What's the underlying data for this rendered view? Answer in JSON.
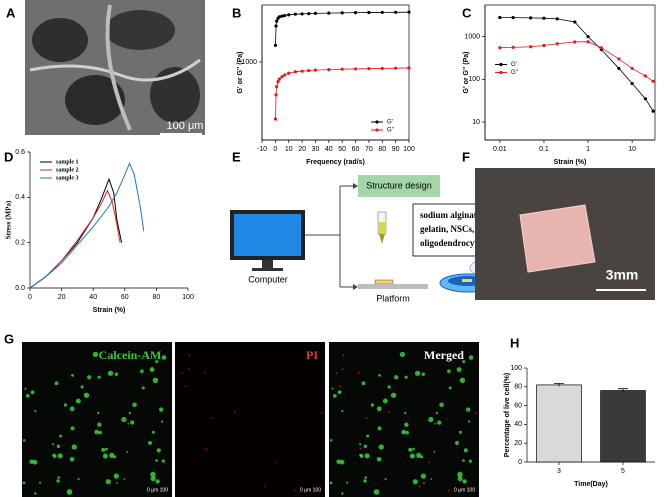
{
  "panels": [
    "A",
    "B",
    "C",
    "D",
    "E",
    "F",
    "G",
    "H"
  ],
  "images": {
    "sem_scale": "100 μm",
    "photo_scale": "3mm",
    "fluorescence": [
      {
        "label": "Calcein-AM",
        "scale": "0 μm 100"
      },
      {
        "label": "PI",
        "scale": "0 μm 100"
      },
      {
        "label": "Merged",
        "scale": "0 μm 100"
      }
    ]
  },
  "diagram": {
    "structure": "Structure design",
    "materials": [
      "sodium alginate，",
      "gelatin, NSCs,",
      "oligodendrocytes"
    ],
    "computer": "Computer",
    "platform": "Platform"
  },
  "chart_data": [
    {
      "type": "line",
      "xlabel": "Frequency (rad/s)",
      "ylabel": "G' or G'' (Pa)",
      "xlim": [
        -10,
        100
      ],
      "xticks": [
        -10,
        0,
        10,
        20,
        30,
        40,
        50,
        60,
        70,
        80,
        90,
        100
      ],
      "ylim": [
        150,
        4000
      ],
      "ylog": true,
      "yticks": [
        1000
      ],
      "markers": true,
      "legend": "lower right",
      "x": [
        0.1,
        0.5,
        1,
        2,
        3,
        5,
        7,
        10,
        15,
        20,
        25,
        30,
        40,
        50,
        60,
        70,
        80,
        90,
        100
      ],
      "series": [
        {
          "name": "G'",
          "color": "#000000",
          "values": [
            1500,
            2400,
            2700,
            2900,
            3000,
            3050,
            3100,
            3150,
            3200,
            3220,
            3240,
            3260,
            3280,
            3300,
            3320,
            3330,
            3340,
            3350,
            3360
          ]
        },
        {
          "name": "G''",
          "color": "#e31a1c",
          "values": [
            250,
            450,
            550,
            620,
            660,
            700,
            730,
            760,
            790,
            800,
            810,
            820,
            830,
            840,
            845,
            850,
            855,
            860,
            865
          ]
        }
      ]
    },
    {
      "type": "line",
      "xlabel": "Strain (%)",
      "ylabel": "G' or G'' (Pa)",
      "xlim": [
        0.0046,
        33
      ],
      "xlog": true,
      "xticks": [
        0.01,
        0.1,
        1,
        10
      ],
      "ylim": [
        3.8,
        5500
      ],
      "ylog": true,
      "yticks": [
        10,
        100,
        1000
      ],
      "markers": true,
      "legend": "middle left",
      "x": [
        0.01,
        0.02,
        0.05,
        0.1,
        0.2,
        0.5,
        1,
        2,
        5,
        10,
        20,
        30
      ],
      "series": [
        {
          "name": "G'",
          "color": "#000000",
          "values": [
            2800,
            2780,
            2750,
            2700,
            2600,
            2200,
            1000,
            500,
            180,
            80,
            35,
            18
          ]
        },
        {
          "name": "G''",
          "color": "#e31a1c",
          "values": [
            550,
            560,
            580,
            620,
            680,
            750,
            760,
            550,
            300,
            180,
            120,
            90
          ]
        }
      ]
    },
    {
      "type": "line",
      "xlabel": "Strain (%)",
      "ylabel": "Stress (MPa)",
      "xlim": [
        0,
        100
      ],
      "xticks": [
        0,
        20,
        40,
        60,
        80,
        100
      ],
      "ylim": [
        0,
        0.6
      ],
      "yticks": [
        {
          "value": 0,
          "label": "0.0"
        },
        {
          "value": 0.2,
          "label": "0.2"
        },
        {
          "value": 0.4,
          "label": "0.4"
        },
        {
          "value": 0.6,
          "label": "0.6"
        }
      ],
      "markers": false,
      "legend": "upper left",
      "series": [
        {
          "name": "sample 1",
          "color": "#000000",
          "x": [
            0,
            10,
            20,
            30,
            40,
            45,
            50,
            53,
            55,
            58
          ],
          "values": [
            0,
            0.05,
            0.12,
            0.2,
            0.31,
            0.39,
            0.48,
            0.42,
            0.3,
            0.2
          ]
        },
        {
          "name": "sample 2",
          "color": "#d62728",
          "x": [
            0,
            10,
            20,
            30,
            40,
            45,
            49,
            52,
            55,
            57
          ],
          "values": [
            0,
            0.05,
            0.12,
            0.21,
            0.31,
            0.37,
            0.43,
            0.38,
            0.28,
            0.2
          ]
        },
        {
          "name": "sample 3",
          "color": "#1f77b4",
          "x": [
            0,
            10,
            20,
            30,
            40,
            50,
            55,
            60,
            63,
            66,
            70,
            72
          ],
          "values": [
            0,
            0.05,
            0.11,
            0.19,
            0.27,
            0.36,
            0.42,
            0.5,
            0.55,
            0.5,
            0.35,
            0.25
          ]
        }
      ]
    },
    {
      "type": "bar",
      "xlabel": "Time(Day)",
      "ylabel": "Percentage of live cell(%)",
      "categories": [
        "3",
        "5"
      ],
      "values": [
        82,
        76
      ],
      "errors": [
        1.5,
        2
      ],
      "colors": [
        "#d9d9d9",
        "#3a3a3a"
      ],
      "ylim": [
        0,
        100
      ],
      "yticks": [
        0,
        20,
        40,
        60,
        80,
        100
      ]
    }
  ]
}
